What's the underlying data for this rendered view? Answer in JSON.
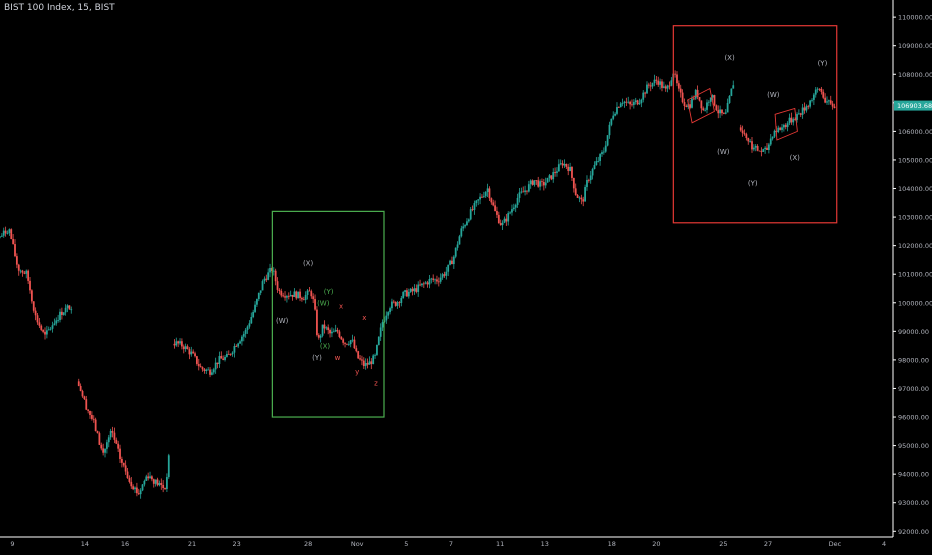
{
  "header": {
    "symbol_title": "BIST 100 Index, 15, BIST"
  },
  "colors": {
    "background": "#000000",
    "candle_up": "#26a69a",
    "candle_down": "#ef5350",
    "axis_text": "#b2b5be",
    "axis_line": "#ffffff",
    "price_tag_bg": "#26a69a",
    "green_box": "#4caf50",
    "red_box": "#e53935",
    "label_gray": "#b2b5be",
    "label_red": "#ef5350",
    "label_green": "#4caf50"
  },
  "chart_data": {
    "type": "candlestick",
    "y_axis": {
      "ylim": [
        91800,
        110600
      ],
      "ticks": [
        "110000.00",
        "109000.00",
        "108000.00",
        "107000.00",
        "106000.00",
        "105000.00",
        "104000.00",
        "103000.00",
        "102000.00",
        "101000.00",
        "100000.00",
        "99000.00",
        "98000.00",
        "97000.00",
        "96000.00",
        "95000.00",
        "94000.00",
        "93000.00",
        "92000.00"
      ],
      "tick_values": [
        110000,
        109000,
        108000,
        107000,
        106000,
        105000,
        104000,
        103000,
        102000,
        101000,
        100000,
        99000,
        98000,
        97000,
        96000,
        95000,
        94000,
        93000,
        92000
      ]
    },
    "x_axis": {
      "labels": [
        "9",
        "14",
        "16",
        "21",
        "23",
        "28",
        "Nov",
        "5",
        "7",
        "11",
        "13",
        "18",
        "20",
        "25",
        "27",
        "Dec",
        "4"
      ],
      "positions": [
        0.014,
        0.095,
        0.14,
        0.215,
        0.265,
        0.345,
        0.4,
        0.455,
        0.505,
        0.56,
        0.61,
        0.685,
        0.735,
        0.81,
        0.86,
        0.935,
        0.99
      ]
    },
    "current_price": {
      "value": 106903.68,
      "label": "106903.68"
    },
    "price_path": [
      [
        0.0,
        102300
      ],
      [
        0.01,
        102600
      ],
      [
        0.02,
        101200
      ],
      [
        0.03,
        101000
      ],
      [
        0.04,
        99500
      ],
      [
        0.05,
        98800
      ],
      [
        0.06,
        99300
      ],
      [
        0.07,
        99700
      ],
      [
        0.08,
        99900
      ],
      [
        0.088,
        97200
      ],
      [
        0.095,
        96500
      ],
      [
        0.105,
        95800
      ],
      [
        0.115,
        94700
      ],
      [
        0.125,
        95500
      ],
      [
        0.135,
        94500
      ],
      [
        0.145,
        93800
      ],
      [
        0.155,
        93300
      ],
      [
        0.165,
        94000
      ],
      [
        0.175,
        93700
      ],
      [
        0.185,
        93500
      ],
      [
        0.19,
        94800
      ],
      [
        0.195,
        98600
      ],
      [
        0.205,
        98500
      ],
      [
        0.215,
        98200
      ],
      [
        0.225,
        97700
      ],
      [
        0.235,
        97600
      ],
      [
        0.245,
        98000
      ],
      [
        0.255,
        98100
      ],
      [
        0.265,
        98600
      ],
      [
        0.275,
        99000
      ],
      [
        0.285,
        99800
      ],
      [
        0.295,
        100800
      ],
      [
        0.305,
        101200
      ],
      [
        0.312,
        100400
      ],
      [
        0.32,
        100300
      ],
      [
        0.33,
        100300
      ],
      [
        0.34,
        100200
      ],
      [
        0.348,
        100400
      ],
      [
        0.352,
        99900
      ],
      [
        0.356,
        98600
      ],
      [
        0.362,
        99200
      ],
      [
        0.37,
        98900
      ],
      [
        0.378,
        99000
      ],
      [
        0.386,
        98600
      ],
      [
        0.394,
        98700
      ],
      [
        0.4,
        98100
      ],
      [
        0.408,
        97800
      ],
      [
        0.414,
        97900
      ],
      [
        0.42,
        98100
      ],
      [
        0.428,
        99300
      ],
      [
        0.436,
        99900
      ],
      [
        0.444,
        100000
      ],
      [
        0.452,
        100300
      ],
      [
        0.462,
        100400
      ],
      [
        0.472,
        100600
      ],
      [
        0.482,
        100800
      ],
      [
        0.49,
        100800
      ],
      [
        0.5,
        101100
      ],
      [
        0.508,
        101600
      ],
      [
        0.516,
        102500
      ],
      [
        0.526,
        103100
      ],
      [
        0.536,
        103600
      ],
      [
        0.546,
        104000
      ],
      [
        0.554,
        103200
      ],
      [
        0.562,
        102700
      ],
      [
        0.57,
        103100
      ],
      [
        0.58,
        103700
      ],
      [
        0.59,
        104000
      ],
      [
        0.598,
        104300
      ],
      [
        0.606,
        104100
      ],
      [
        0.614,
        104300
      ],
      [
        0.622,
        104600
      ],
      [
        0.63,
        104900
      ],
      [
        0.638,
        104700
      ],
      [
        0.645,
        103800
      ],
      [
        0.652,
        103500
      ],
      [
        0.658,
        104300
      ],
      [
        0.666,
        104800
      ],
      [
        0.676,
        105300
      ],
      [
        0.686,
        106600
      ],
      [
        0.696,
        107100
      ],
      [
        0.706,
        106900
      ],
      [
        0.716,
        107100
      ],
      [
        0.726,
        107600
      ],
      [
        0.736,
        107800
      ],
      [
        0.746,
        107400
      ],
      [
        0.754,
        108100
      ],
      [
        0.76,
        107400
      ],
      [
        0.766,
        107000
      ],
      [
        0.772,
        106900
      ],
      [
        0.78,
        107400
      ],
      [
        0.788,
        106700
      ],
      [
        0.796,
        107300
      ],
      [
        0.804,
        106700
      ],
      [
        0.812,
        106500
      ],
      [
        0.818,
        107300
      ],
      [
        0.822,
        107800
      ],
      [
        0.828,
        106200
      ],
      [
        0.836,
        105800
      ],
      [
        0.844,
        105400
      ],
      [
        0.852,
        105300
      ],
      [
        0.858,
        105300
      ],
      [
        0.866,
        106000
      ],
      [
        0.874,
        106100
      ],
      [
        0.882,
        106300
      ],
      [
        0.89,
        106500
      ],
      [
        0.898,
        106700
      ],
      [
        0.906,
        107000
      ],
      [
        0.912,
        107300
      ],
      [
        0.918,
        107500
      ],
      [
        0.924,
        107100
      ],
      [
        0.93,
        106900
      ],
      [
        0.936,
        106900
      ]
    ],
    "annotations": [
      {
        "text": "(X)",
        "x": 0.345,
        "y": 101300,
        "color": "gray"
      },
      {
        "text": "(W)",
        "x": 0.316,
        "y": 99300,
        "color": "gray"
      },
      {
        "text": "(Y)",
        "x": 0.355,
        "y": 98000,
        "color": "gray"
      },
      {
        "text": "(Y)",
        "x": 0.368,
        "y": 100300,
        "color": "green"
      },
      {
        "text": "(W)",
        "x": 0.362,
        "y": 99900,
        "color": "green"
      },
      {
        "text": "(X)",
        "x": 0.364,
        "y": 98400,
        "color": "green"
      },
      {
        "text": "x",
        "x": 0.382,
        "y": 99800,
        "color": "red"
      },
      {
        "text": "w",
        "x": 0.378,
        "y": 98000,
        "color": "red"
      },
      {
        "text": "x",
        "x": 0.408,
        "y": 99400,
        "color": "red"
      },
      {
        "text": "y",
        "x": 0.4,
        "y": 97500,
        "color": "red"
      },
      {
        "text": "z",
        "x": 0.421,
        "y": 97100,
        "color": "red"
      },
      {
        "text": "(X)",
        "x": 0.817,
        "y": 108500,
        "color": "gray"
      },
      {
        "text": "(W)",
        "x": 0.81,
        "y": 105200,
        "color": "gray"
      },
      {
        "text": "(Y)",
        "x": 0.843,
        "y": 104100,
        "color": "gray"
      },
      {
        "text": "(W)",
        "x": 0.866,
        "y": 107200,
        "color": "gray"
      },
      {
        "text": "(X)",
        "x": 0.89,
        "y": 105000,
        "color": "gray"
      },
      {
        "text": "(Y)",
        "x": 0.921,
        "y": 108300,
        "color": "gray"
      }
    ],
    "boxes": [
      {
        "x0": 0.305,
        "x1": 0.43,
        "y0": 96000,
        "y1": 103200,
        "color": "green"
      },
      {
        "x0": 0.754,
        "x1": 0.937,
        "y0": 102800,
        "y1": 109700,
        "color": "red"
      }
    ],
    "small_channels": [
      [
        [
          0.77,
          107100
        ],
        [
          0.795,
          107500
        ],
        [
          0.8,
          106700
        ],
        [
          0.775,
          106300
        ]
      ],
      [
        [
          0.868,
          106600
        ],
        [
          0.89,
          106800
        ],
        [
          0.893,
          106000
        ],
        [
          0.87,
          105700
        ]
      ]
    ]
  }
}
